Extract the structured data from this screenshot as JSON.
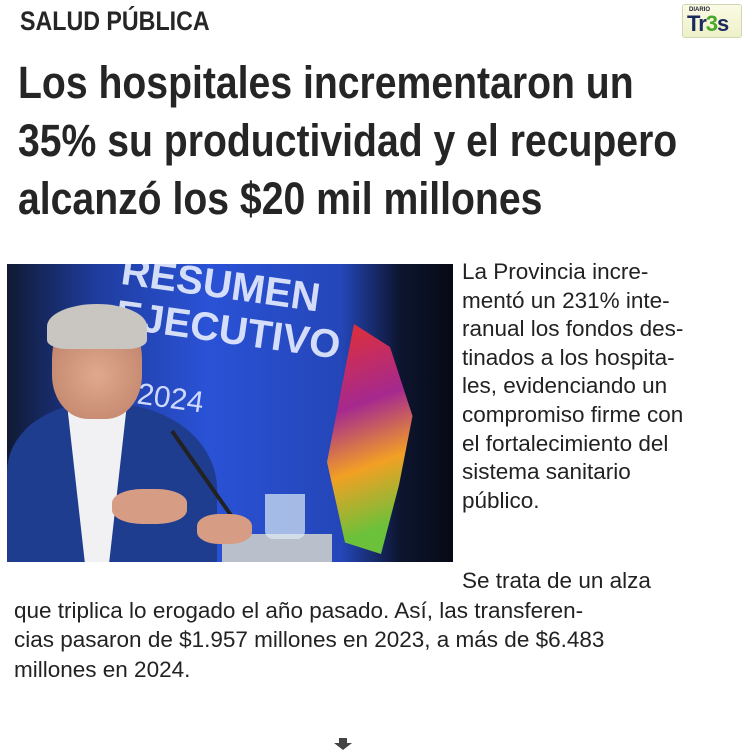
{
  "section": "SALUD PÚBLICA",
  "logo": {
    "small": "DIARIO",
    "main_a": "Tr",
    "main_b": "3",
    "main_c": "s"
  },
  "headline_lines": [
    "Los hospitales incrementaron un",
    "35% su productividad y el recupero",
    "alcanzó los $20 mil millones"
  ],
  "photo": {
    "screen_text": "RESUMEN EJECUTIVO",
    "screen_year": "2024"
  },
  "column_lines": [
    "La Provincia incre-",
    "mentó un 231% inte-",
    "ranual los fondos des-",
    "tinados a los hospita-",
    "les, evidenciando un",
    "compromiso firme con",
    "el fortalecimiento del",
    "sistema sanitario",
    "público."
  ],
  "paragraph_lines": [
    "Se trata de un alza",
    "que triplica lo erogado el año pasado. Así, las transferen-",
    "cias pasaron de $1.957 millones en 2023, a más de $6.483",
    "millones en 2024."
  ],
  "colors": {
    "ink": "#252525",
    "logo_blue": "#1b2a5c",
    "logo_green": "#47a82a"
  },
  "icons": {
    "continue": "down-arrow-icon"
  }
}
